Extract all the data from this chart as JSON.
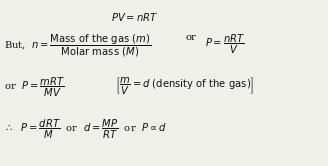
{
  "background_color": "#f0f0eb",
  "text_color": "#111111",
  "figsize": [
    3.28,
    1.66
  ],
  "dpi": 100,
  "lines": {
    "l1": "$PV = nRT$",
    "l2a": "But,  $n =\\dfrac{\\mathrm{Mass\\ of\\ the\\ gas\\ }(m)}{\\mathrm{Molar\\ mass\\ }(M)}$",
    "l2b": "or",
    "l2c": "$P = \\dfrac{nRT}{V}$",
    "l3a": "or  $P = \\dfrac{mRT}{MV}$",
    "l3b": "$\\left[\\dfrac{m}{V} = d$ (density of the gas)$\\right]$",
    "l4": "$\\therefore$  $P = \\dfrac{dRT}{M}$  or  $d = \\dfrac{MP}{RT}$  or  $P \\propto d$"
  }
}
